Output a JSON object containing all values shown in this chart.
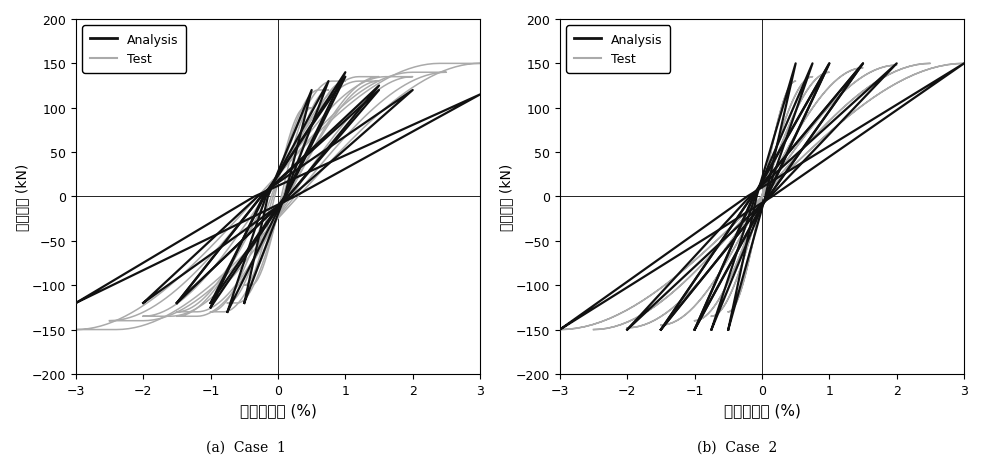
{
  "xlabel": "증간변형각 (%)",
  "ylabel": "수평하중 (kN)",
  "xlim": [
    -3,
    3
  ],
  "ylim": [
    -200,
    200
  ],
  "xticks": [
    -3,
    -2,
    -1,
    0,
    1,
    2,
    3
  ],
  "yticks": [
    -200,
    -150,
    -100,
    -50,
    0,
    50,
    100,
    150,
    200
  ],
  "caption1": "(a)  Case  1",
  "caption2": "(b)  Case  2",
  "analysis_color": "#111111",
  "test_color": "#aaaaaa",
  "background": "#ffffff",
  "analysis_lw": 1.6,
  "test_lw": 1.1,
  "c1_analysis": [
    {
      "xm": 0.5,
      "yp": 120,
      "yn": 120,
      "x0p": 0.1,
      "x0n": -0.15
    },
    {
      "xm": 0.75,
      "yp": 130,
      "yn": 130,
      "x0p": 0.1,
      "x0n": -0.18
    },
    {
      "xm": 1.0,
      "yp": 140,
      "yn": 120,
      "x0p": 0.1,
      "x0n": -0.2
    },
    {
      "xm": 1.0,
      "yp": 135,
      "yn": 125,
      "x0p": 0.12,
      "x0n": -0.22
    },
    {
      "xm": 1.5,
      "yp": 125,
      "yn": 120,
      "x0p": 0.15,
      "x0n": -0.25
    },
    {
      "xm": 1.5,
      "yp": 120,
      "yn": 120,
      "x0p": 0.15,
      "x0n": -0.25
    },
    {
      "xm": 2.0,
      "yp": 120,
      "yn": 120,
      "x0p": 0.2,
      "x0n": -0.3
    },
    {
      "xm": 3.0,
      "yp": 115,
      "yn": 120,
      "x0p": 0.25,
      "x0n": -0.35
    }
  ],
  "c1_test": [
    {
      "xm": 0.5,
      "yp": 100,
      "yn": 100
    },
    {
      "xm": 0.75,
      "yp": 120,
      "yn": 120
    },
    {
      "xm": 1.0,
      "yp": 130,
      "yn": 130
    },
    {
      "xm": 1.5,
      "yp": 135,
      "yn": 135
    },
    {
      "xm": 1.5,
      "yp": 130,
      "yn": 130
    },
    {
      "xm": 2.0,
      "yp": 135,
      "yn": 135
    },
    {
      "xm": 2.5,
      "yp": 140,
      "yn": 140
    },
    {
      "xm": 3.0,
      "yp": 150,
      "yn": 150
    }
  ],
  "c2_analysis": [
    {
      "xm": 0.5,
      "yp": 150,
      "yn": 150,
      "x0p": 0.05,
      "x0n": -0.08
    },
    {
      "xm": 0.75,
      "yp": 150,
      "yn": 150,
      "x0p": 0.06,
      "x0n": -0.1
    },
    {
      "xm": 1.0,
      "yp": 150,
      "yn": 150,
      "x0p": 0.07,
      "x0n": -0.12
    },
    {
      "xm": 1.0,
      "yp": 150,
      "yn": 150,
      "x0p": 0.08,
      "x0n": -0.13
    },
    {
      "xm": 1.5,
      "yp": 150,
      "yn": 150,
      "x0p": 0.1,
      "x0n": -0.15
    },
    {
      "xm": 1.5,
      "yp": 150,
      "yn": 150,
      "x0p": 0.1,
      "x0n": -0.15
    },
    {
      "xm": 2.0,
      "yp": 150,
      "yn": 150,
      "x0p": 0.12,
      "x0n": -0.18
    },
    {
      "xm": 3.0,
      "yp": 150,
      "yn": 150,
      "x0p": 0.15,
      "x0n": -0.22
    }
  ],
  "c2_test": [
    {
      "xm": 0.5,
      "yp": 130,
      "yn": 130
    },
    {
      "xm": 0.75,
      "yp": 135,
      "yn": 135
    },
    {
      "xm": 1.0,
      "yp": 140,
      "yn": 140
    },
    {
      "xm": 1.5,
      "yp": 145,
      "yn": 145
    },
    {
      "xm": 2.0,
      "yp": 148,
      "yn": 148
    },
    {
      "xm": 2.5,
      "yp": 150,
      "yn": 150
    },
    {
      "xm": 3.0,
      "yp": 150,
      "yn": 150
    }
  ]
}
